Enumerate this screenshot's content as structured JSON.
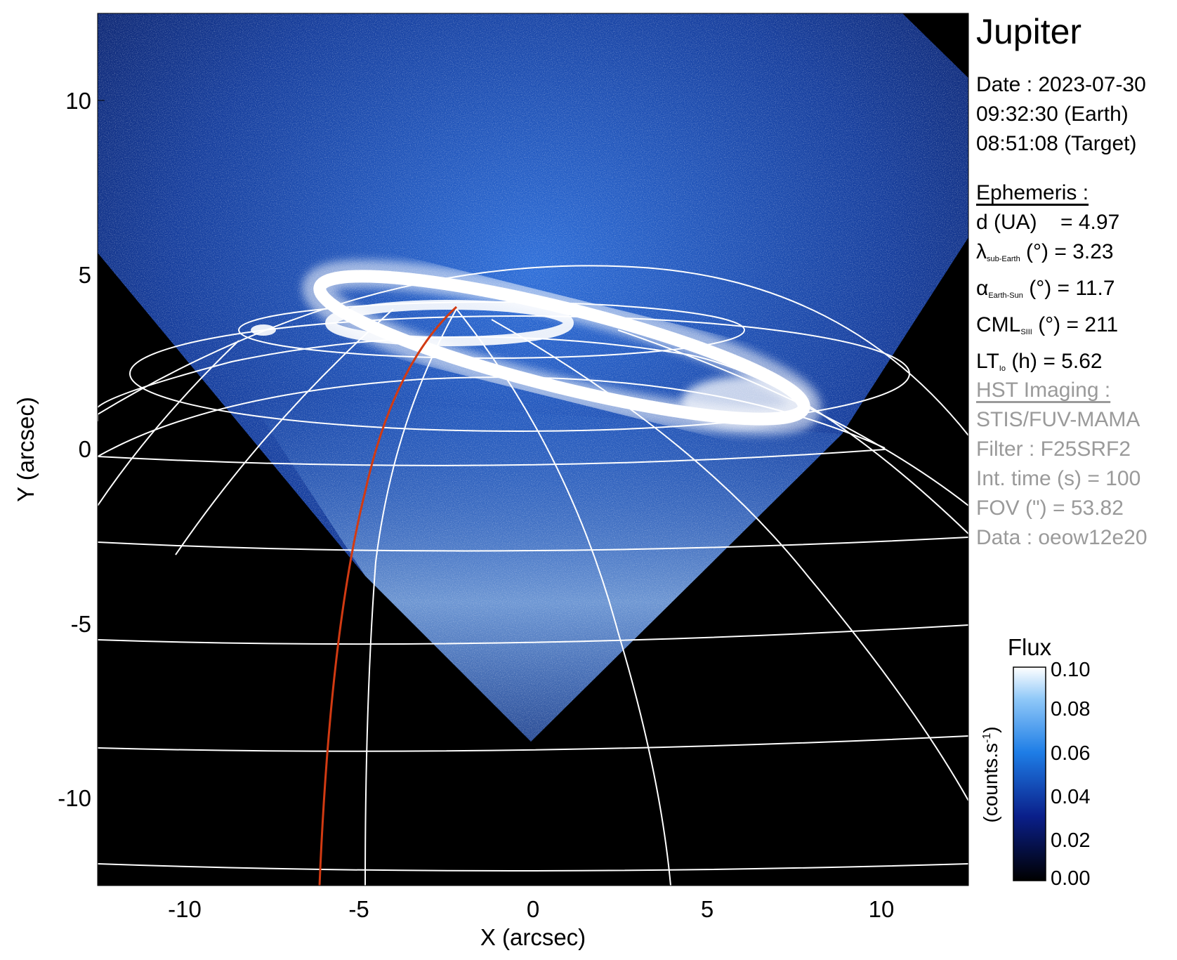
{
  "title": "Jupiter",
  "date": {
    "line1": "Date : 2023-07-30",
    "line2": "09:32:30 (Earth)",
    "line3": "08:51:08 (Target)"
  },
  "ephemeris": {
    "heading": "Ephemeris :",
    "d": "d (UA)    = 4.97",
    "lambda": {
      "sym": "λ",
      "sub": "sub-Earth",
      "rest": " (°) = 3.23"
    },
    "alpha": {
      "sym": "α",
      "sub": "Earth-Sun",
      "rest": " (°) = 11.7"
    },
    "cml": {
      "sym": "CML",
      "sub": "SIII",
      "rest": " (°) = 211"
    },
    "lt": {
      "sym": "LT",
      "sub": "Io",
      "rest": " (h) = 5.62"
    }
  },
  "imaging": {
    "heading": "HST Imaging :",
    "instrument": "STIS/FUV-MAMA",
    "filter": "Filter : F25SRF2",
    "int_time": "Int. time (s) = 100",
    "fov": "FOV (\") = 53.82",
    "data": "Data : oeow12e20"
  },
  "axes": {
    "xlabel": "X (arcsec)",
    "ylabel": "Y (arcsec)",
    "xrange": [
      -12.5,
      12.5
    ],
    "yrange": [
      -12.5,
      12.5
    ],
    "xticks": [
      "-10",
      "-5",
      "0",
      "5",
      "10"
    ],
    "yticks": [
      "10",
      "5",
      "0",
      "-5",
      "-10"
    ]
  },
  "colorbar": {
    "title": "Flux",
    "unit_label": "(counts.s",
    "unit_sup": "-1",
    "unit_close": ")",
    "ticks": [
      "0.10",
      "0.08",
      "0.06",
      "0.04",
      "0.02",
      "0.00"
    ],
    "range": [
      0.0,
      0.1
    ]
  },
  "colors": {
    "background": "#000000",
    "emission_dark": "#0a1a6a",
    "emission_mid": "#2a7be8",
    "emission_bright": "#ffffff",
    "grid": "#ffffff",
    "meridian": "#d23a12"
  }
}
